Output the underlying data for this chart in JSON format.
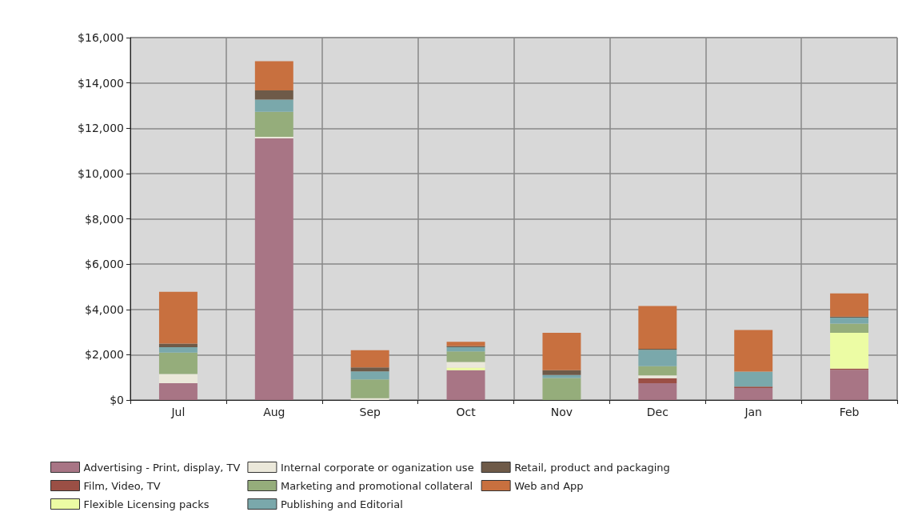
{
  "chart_data": {
    "type": "bar",
    "stacked": true,
    "categories": [
      "Jul",
      "Aug",
      "Sep",
      "Oct",
      "Nov",
      "Dec",
      "Jan",
      "Feb"
    ],
    "series": [
      {
        "name": "Advertising - Print, display, TV",
        "color": "#a87585",
        "values": [
          740,
          11550,
          0,
          1320,
          0,
          740,
          530,
          1330
        ]
      },
      {
        "name": "Film, Video, TV",
        "color": "#9b4f45",
        "values": [
          0,
          0,
          0,
          0,
          0,
          220,
          60,
          60
        ]
      },
      {
        "name": "Flexible Licensing packs",
        "color": "#ecfca4",
        "values": [
          0,
          0,
          0,
          110,
          0,
          0,
          0,
          1580
        ]
      },
      {
        "name": "Internal corporate or oganization use",
        "color": "#ebe8da",
        "values": [
          410,
          70,
          80,
          250,
          0,
          130,
          0,
          0
        ]
      },
      {
        "name": "Marketing and promotional collateral",
        "color": "#95ad7b",
        "values": [
          940,
          1100,
          830,
          470,
          970,
          400,
          0,
          400
        ]
      },
      {
        "name": "Publishing and Editorial",
        "color": "#7aa8ab",
        "values": [
          240,
          540,
          350,
          180,
          130,
          730,
          660,
          270
        ]
      },
      {
        "name": "Retail, product and packaging",
        "color": "#6e5a48",
        "values": [
          160,
          410,
          180,
          50,
          220,
          40,
          0,
          40
        ]
      },
      {
        "name": "Web and App",
        "color": "#c8703f",
        "values": [
          2290,
          1290,
          760,
          190,
          1650,
          1890,
          1840,
          1030
        ]
      }
    ],
    "ylim": [
      0,
      16000
    ],
    "yticks": [
      {
        "value": 0,
        "label": "$0"
      },
      {
        "value": 2000,
        "label": "$2,000"
      },
      {
        "value": 4000,
        "label": "$4,000"
      },
      {
        "value": 6000,
        "label": "$6,000"
      },
      {
        "value": 8000,
        "label": "$8,000"
      },
      {
        "value": 10000,
        "label": "$10,000"
      },
      {
        "value": 12000,
        "label": "$12,000"
      },
      {
        "value": 14000,
        "label": "$14,000"
      },
      {
        "value": 16000,
        "label": "$16,000"
      }
    ],
    "grid": true,
    "legend": "bottom"
  }
}
